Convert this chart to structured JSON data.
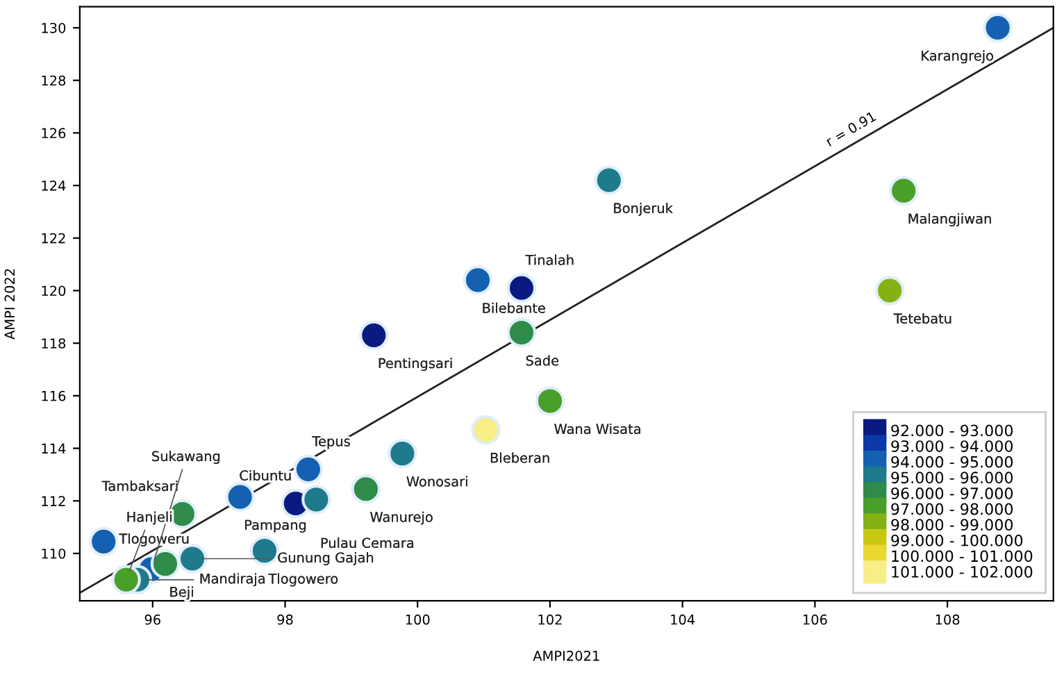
{
  "chart_data": {
    "type": "scatter",
    "xlabel": "AMPI2021",
    "ylabel": "AMPI 2022",
    "xlim": [
      94.9,
      109.6
    ],
    "ylim": [
      108.2,
      130.8
    ],
    "xticks": [
      96,
      98,
      100,
      102,
      104,
      106,
      108
    ],
    "yticks": [
      110,
      112,
      114,
      116,
      118,
      120,
      122,
      124,
      126,
      128,
      130
    ],
    "grid": false,
    "legend": "bottom right",
    "marker": "circle",
    "series": [
      {
        "name": "92.000 - 93.000",
        "color": "#0a1a80",
        "x": [
          101.57,
          99.34,
          98.16
        ],
        "values": [
          120.1,
          118.3,
          111.9
        ]
      },
      {
        "name": "93.000 - 94.000",
        "color": "#0b3aa8"
      },
      {
        "name": "94.000 - 95.000",
        "color": "#1560b0",
        "x": [
          108.76,
          100.91,
          98.35,
          97.32,
          95.26,
          95.98
        ],
        "values": [
          130.0,
          120.4,
          113.2,
          112.15,
          110.45,
          109.4
        ]
      },
      {
        "name": "95.000 - 96.000",
        "color": "#1f7a8c",
        "x": [
          102.89,
          99.77,
          98.47,
          97.69,
          96.6,
          95.77
        ],
        "values": [
          124.2,
          113.8,
          112.05,
          110.1,
          109.8,
          109.0
        ]
      },
      {
        "name": "96.000 - 97.000",
        "color": "#2e8b4a",
        "x": [
          101.57,
          99.22,
          96.45,
          96.19
        ],
        "values": [
          118.4,
          112.45,
          111.5,
          109.6
        ]
      },
      {
        "name": "97.000 - 98.000",
        "color": "#4a9e2a",
        "x": [
          107.34,
          102.0,
          95.6
        ],
        "values": [
          123.8,
          115.8,
          109.0
        ]
      },
      {
        "name": "98.000 - 99.000",
        "color": "#84b214",
        "x": [
          107.13
        ],
        "values": [
          120.0
        ]
      },
      {
        "name": "99.000 - 100.000",
        "color": "#c8c810"
      },
      {
        "name": "100.000 - 101.000",
        "color": "#e8d830"
      },
      {
        "name": "101.000 - 102.000",
        "color": "#f8ee88",
        "x": [
          101.03
        ],
        "values": [
          114.7
        ]
      },
      {
        "type": "line",
        "marker": "none",
        "color": "#222222",
        "x": [
          94.9,
          109.6
        ],
        "values": [
          108.5,
          130.0
        ]
      }
    ],
    "annotations": [
      {
        "text": "Karangrejo",
        "x": 108.76,
        "y": 130.0
      },
      {
        "text": "Bonjeruk",
        "x": 102.89,
        "y": 124.2
      },
      {
        "text": "Malangjiwan",
        "x": 107.34,
        "y": 123.8
      },
      {
        "text": "Tetebatu",
        "x": 107.13,
        "y": 120.0
      },
      {
        "text": "Bilebante",
        "x": 100.91,
        "y": 120.4
      },
      {
        "text": "Tinalah",
        "x": 101.57,
        "y": 120.1
      },
      {
        "text": "Pentingsari",
        "x": 99.34,
        "y": 118.3
      },
      {
        "text": "Sade",
        "x": 101.57,
        "y": 118.4
      },
      {
        "text": "Wana Wisata",
        "x": 102.0,
        "y": 115.8
      },
      {
        "text": "Bleberan",
        "x": 101.03,
        "y": 114.7
      },
      {
        "text": "Wonosari",
        "x": 99.77,
        "y": 113.8
      },
      {
        "text": "Tepus",
        "x": 98.35,
        "y": 113.2
      },
      {
        "text": "Pampang",
        "x": 97.32,
        "y": 112.15
      },
      {
        "text": "Wanurejo",
        "x": 99.22,
        "y": 112.45
      },
      {
        "text": "Pulau Cemara",
        "x": 98.47,
        "y": 112.05
      },
      {
        "text": "Cibuntu",
        "x": 98.16,
        "y": 111.9
      },
      {
        "text": "Tambaksari",
        "x": 96.45,
        "y": 111.5
      },
      {
        "text": "Tlogoweru",
        "x": 95.26,
        "y": 110.45
      },
      {
        "text": "Tlogowero",
        "x": 97.69,
        "y": 110.1
      },
      {
        "text": "Gunung Gajah",
        "x": 96.6,
        "y": 109.8
      },
      {
        "text": "Beji",
        "x": 96.19,
        "y": 109.6
      },
      {
        "text": "Sukawang",
        "x": 95.98,
        "y": 109.4
      },
      {
        "text": "Hanjeli",
        "x": 95.6,
        "y": 109.0
      },
      {
        "text": "Mandiraja",
        "x": 95.77,
        "y": 109.0
      },
      {
        "text": "r = 0.91",
        "x": 106.6,
        "y": 125.9
      }
    ]
  }
}
